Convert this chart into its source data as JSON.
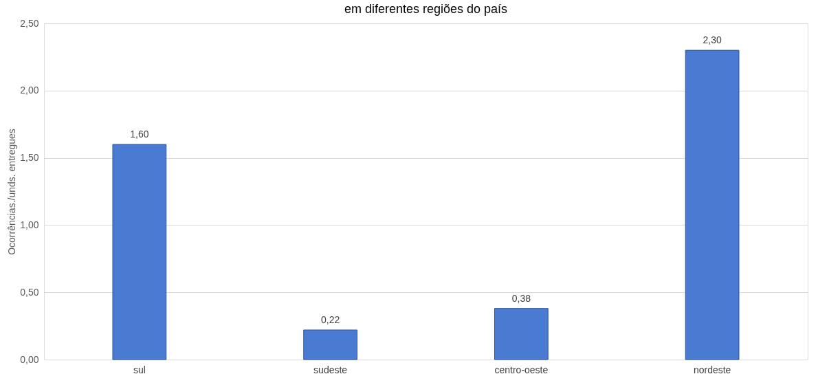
{
  "chart_data": {
    "type": "bar",
    "title": "em diferentes regiões do país",
    "ylabel": "Ocorrências./unds. entregues",
    "categories": [
      "sul",
      "sudeste",
      "centro-oeste",
      "nordeste"
    ],
    "values": [
      1.6,
      0.22,
      0.38,
      2.3
    ],
    "value_labels": [
      "1,60",
      "0,22",
      "0,38",
      "2,30"
    ],
    "color": "#4a7bd2",
    "ylim": [
      0,
      2.5
    ],
    "yticks": [
      {
        "value": 0,
        "label": "0,00"
      },
      {
        "value": 0.5,
        "label": "0,50"
      },
      {
        "value": 1,
        "label": "1,00"
      },
      {
        "value": 1.5,
        "label": "1,50"
      },
      {
        "value": 2,
        "label": "2,00"
      },
      {
        "value": 2.5,
        "label": "2,50"
      }
    ],
    "grid": "y"
  }
}
